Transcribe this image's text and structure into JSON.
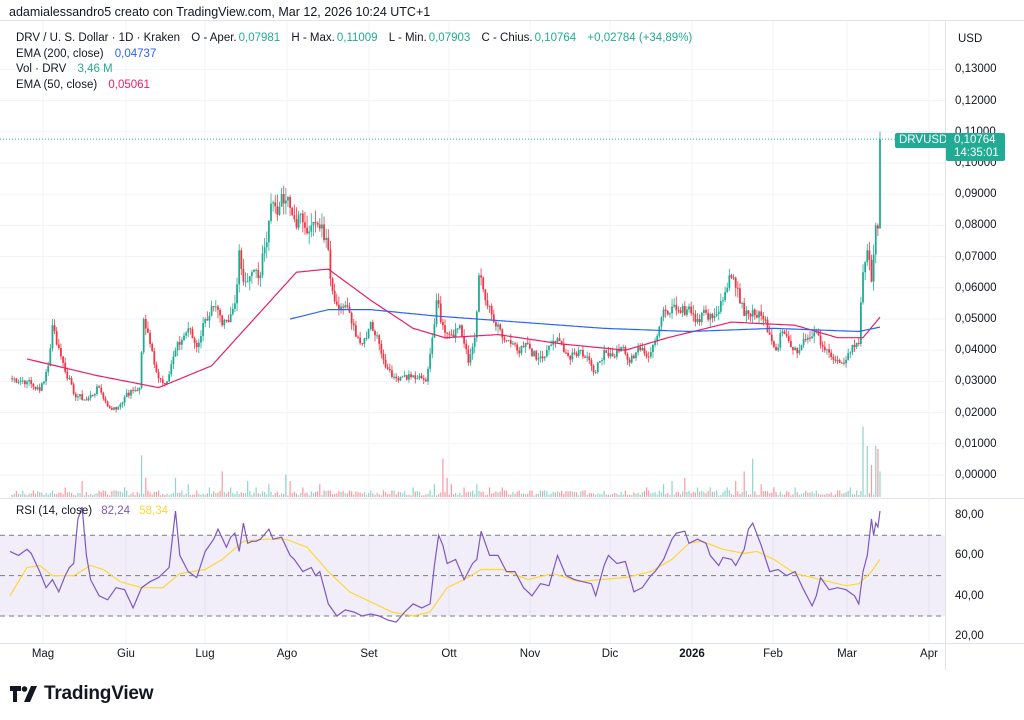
{
  "header": {
    "credit": "adamialessandro5 creato con TradingView.com, Mar 12, 2026 10:24 UTC+1"
  },
  "legend": {
    "symbol": "DRV / U. S. Dollar · 1D · Kraken",
    "open_label": "O - Aper.",
    "open": "0,07981",
    "high_label": "H - Max.",
    "high": "0,11009",
    "low_label": "L - Min.",
    "low": "0,07903",
    "close_label": "C - Chius.",
    "close": "0,10764",
    "change": "+0,02784 (+34,89%)",
    "ema200_label": "EMA (200, close)",
    "ema200": "0,04737",
    "vol_label": "Vol · DRV",
    "vol": "3,46 M",
    "ema50_label": "EMA (50, close)",
    "ema50": "0,05061"
  },
  "rsi_legend": {
    "label": "RSI (14, close)",
    "rsi": "82,24",
    "rsi_ma": "58,34"
  },
  "price_axis": {
    "unit": "USD",
    "ticks": [
      "0,13000",
      "0,12000",
      "0,11000",
      "0,10000",
      "0,09000",
      "0,08000",
      "0,07000",
      "0,06000",
      "0,05000",
      "0,04000",
      "0,03000",
      "0,02000",
      "0,01000",
      "0,00000"
    ]
  },
  "rsi_axis": {
    "ticks": [
      "80,00",
      "60,00",
      "40,00",
      "20,00"
    ]
  },
  "time_axis": {
    "labels": [
      "Mag",
      "Giu",
      "Lug",
      "Ago",
      "Set",
      "Ott",
      "Nov",
      "Dic",
      "2026",
      "Feb",
      "Mar",
      "Apr"
    ]
  },
  "last_price": {
    "symbol": "DRVUSD",
    "price": "0,10764",
    "countdown": "14:35:01"
  },
  "brand": {
    "name": "TradingView"
  },
  "colors": {
    "up": "#22ab94",
    "down": "#f23645",
    "ema200": "#2962ff",
    "ema50": "#e91e63",
    "rsi": "#7e57c2",
    "rsi_ma": "#fdd835",
    "band": "#7e57c2"
  },
  "chart_data": {
    "type": "candlestick",
    "title": "DRV / U. S. Dollar · 1D · Kraken",
    "xlabel": "",
    "ylabel": "USD",
    "ylim": [
      0.0,
      0.135
    ],
    "x_months": [
      "Mag",
      "Giu",
      "Lug",
      "Ago",
      "Set",
      "Ott",
      "Nov",
      "Dic",
      "2026",
      "Feb",
      "Mar",
      "Apr"
    ],
    "close_path_anchors": [
      [
        0,
        0.031
      ],
      [
        8,
        0.03
      ],
      [
        14,
        0.027
      ],
      [
        18,
        0.035
      ],
      [
        20,
        0.048
      ],
      [
        24,
        0.038
      ],
      [
        30,
        0.026
      ],
      [
        36,
        0.024
      ],
      [
        42,
        0.028
      ],
      [
        46,
        0.022
      ],
      [
        50,
        0.021
      ],
      [
        54,
        0.025
      ],
      [
        58,
        0.027
      ],
      [
        61,
        0.028
      ],
      [
        63,
        0.05
      ],
      [
        66,
        0.042
      ],
      [
        70,
        0.031
      ],
      [
        74,
        0.03
      ],
      [
        78,
        0.04
      ],
      [
        84,
        0.047
      ],
      [
        88,
        0.041
      ],
      [
        92,
        0.05
      ],
      [
        96,
        0.054
      ],
      [
        100,
        0.048
      ],
      [
        103,
        0.049
      ],
      [
        106,
        0.055
      ],
      [
        108,
        0.072
      ],
      [
        110,
        0.062
      ],
      [
        114,
        0.065
      ],
      [
        118,
        0.064
      ],
      [
        120,
        0.073
      ],
      [
        123,
        0.087
      ],
      [
        127,
        0.086
      ],
      [
        130,
        0.088
      ],
      [
        134,
        0.082
      ],
      [
        138,
        0.081
      ],
      [
        142,
        0.08
      ],
      [
        146,
        0.079
      ],
      [
        149,
        0.076
      ],
      [
        152,
        0.059
      ],
      [
        156,
        0.054
      ],
      [
        160,
        0.052
      ],
      [
        164,
        0.044
      ],
      [
        166,
        0.042
      ],
      [
        170,
        0.049
      ],
      [
        174,
        0.042
      ],
      [
        178,
        0.034
      ],
      [
        182,
        0.031
      ],
      [
        186,
        0.032
      ],
      [
        192,
        0.031
      ],
      [
        196,
        0.03
      ],
      [
        199,
        0.044
      ],
      [
        201,
        0.056
      ],
      [
        204,
        0.048
      ],
      [
        208,
        0.045
      ],
      [
        212,
        0.048
      ],
      [
        216,
        0.036
      ],
      [
        219,
        0.044
      ],
      [
        221,
        0.064
      ],
      [
        224,
        0.056
      ],
      [
        228,
        0.049
      ],
      [
        232,
        0.044
      ],
      [
        236,
        0.042
      ],
      [
        240,
        0.039
      ],
      [
        244,
        0.042
      ],
      [
        248,
        0.037
      ],
      [
        252,
        0.038
      ],
      [
        256,
        0.043
      ],
      [
        260,
        0.042
      ],
      [
        264,
        0.037
      ],
      [
        268,
        0.04
      ],
      [
        272,
        0.038
      ],
      [
        276,
        0.033
      ],
      [
        280,
        0.04
      ],
      [
        284,
        0.038
      ],
      [
        288,
        0.041
      ],
      [
        292,
        0.036
      ],
      [
        296,
        0.041
      ],
      [
        300,
        0.038
      ],
      [
        304,
        0.043
      ],
      [
        308,
        0.053
      ],
      [
        312,
        0.054
      ],
      [
        316,
        0.052
      ],
      [
        320,
        0.054
      ],
      [
        324,
        0.05
      ],
      [
        328,
        0.052
      ],
      [
        332,
        0.051
      ],
      [
        336,
        0.056
      ],
      [
        339,
        0.064
      ],
      [
        342,
        0.06
      ],
      [
        346,
        0.051
      ],
      [
        350,
        0.053
      ],
      [
        354,
        0.051
      ],
      [
        358,
        0.045
      ],
      [
        361,
        0.04
      ],
      [
        364,
        0.046
      ],
      [
        368,
        0.041
      ],
      [
        372,
        0.04
      ],
      [
        376,
        0.044
      ],
      [
        380,
        0.046
      ],
      [
        384,
        0.04
      ],
      [
        388,
        0.037
      ],
      [
        392,
        0.036
      ],
      [
        395,
        0.039
      ],
      [
        398,
        0.041
      ],
      [
        400,
        0.042
      ],
      [
        402,
        0.065
      ],
      [
        404,
        0.072
      ],
      [
        406,
        0.062
      ],
      [
        408,
        0.08
      ],
      [
        409,
        0.079
      ],
      [
        410,
        0.1076
      ]
    ],
    "ema50_points": [
      [
        8,
        0.0372
      ],
      [
        40,
        0.032
      ],
      [
        70,
        0.028
      ],
      [
        95,
        0.035
      ],
      [
        115,
        0.05
      ],
      [
        135,
        0.065
      ],
      [
        150,
        0.066
      ],
      [
        170,
        0.056
      ],
      [
        190,
        0.047
      ],
      [
        205,
        0.044
      ],
      [
        230,
        0.045
      ],
      [
        260,
        0.042
      ],
      [
        290,
        0.04
      ],
      [
        310,
        0.044
      ],
      [
        340,
        0.049
      ],
      [
        370,
        0.048
      ],
      [
        390,
        0.044
      ],
      [
        402,
        0.044
      ],
      [
        410,
        0.0506
      ]
    ],
    "ema200_points": [
      [
        132,
        0.05
      ],
      [
        150,
        0.053
      ],
      [
        170,
        0.053
      ],
      [
        200,
        0.051
      ],
      [
        240,
        0.049
      ],
      [
        280,
        0.047
      ],
      [
        320,
        0.046
      ],
      [
        360,
        0.047
      ],
      [
        400,
        0.046
      ],
      [
        410,
        0.0474
      ]
    ],
    "rsi_points": [
      [
        0,
        62
      ],
      [
        4,
        60
      ],
      [
        8,
        63
      ],
      [
        10,
        61
      ],
      [
        14,
        52
      ],
      [
        17,
        44
      ],
      [
        20,
        48
      ],
      [
        23,
        42
      ],
      [
        26,
        50
      ],
      [
        28,
        54
      ],
      [
        30,
        56
      ],
      [
        32,
        78
      ],
      [
        34,
        84
      ],
      [
        36,
        60
      ],
      [
        38,
        48
      ],
      [
        42,
        40
      ],
      [
        46,
        38
      ],
      [
        50,
        44
      ],
      [
        54,
        43
      ],
      [
        58,
        34
      ],
      [
        62,
        44
      ],
      [
        66,
        47
      ],
      [
        70,
        49
      ],
      [
        75,
        54
      ],
      [
        78,
        82
      ],
      [
        80,
        60
      ],
      [
        84,
        52
      ],
      [
        88,
        49
      ],
      [
        92,
        62
      ],
      [
        96,
        68
      ],
      [
        98,
        73
      ],
      [
        102,
        64
      ],
      [
        104,
        69
      ],
      [
        106,
        71
      ],
      [
        108,
        62
      ],
      [
        110,
        76
      ],
      [
        112,
        66
      ],
      [
        114,
        67
      ],
      [
        116,
        67
      ],
      [
        118,
        68
      ],
      [
        122,
        73
      ],
      [
        124,
        68
      ],
      [
        128,
        69
      ],
      [
        132,
        60
      ],
      [
        134,
        58
      ],
      [
        138,
        52
      ],
      [
        142,
        54
      ],
      [
        144,
        50
      ],
      [
        146,
        52
      ],
      [
        150,
        36
      ],
      [
        154,
        30
      ],
      [
        158,
        33
      ],
      [
        162,
        32
      ],
      [
        166,
        30
      ],
      [
        170,
        31
      ],
      [
        174,
        30
      ],
      [
        178,
        28
      ],
      [
        182,
        27
      ],
      [
        186,
        32
      ],
      [
        190,
        36
      ],
      [
        194,
        34
      ],
      [
        198,
        36
      ],
      [
        200,
        55
      ],
      [
        202,
        70
      ],
      [
        204,
        65
      ],
      [
        206,
        56
      ],
      [
        210,
        58
      ],
      [
        214,
        48
      ],
      [
        218,
        56
      ],
      [
        220,
        58
      ],
      [
        222,
        72
      ],
      [
        226,
        60
      ],
      [
        230,
        60
      ],
      [
        234,
        52
      ],
      [
        238,
        52
      ],
      [
        242,
        44
      ],
      [
        246,
        40
      ],
      [
        250,
        46
      ],
      [
        254,
        45
      ],
      [
        258,
        60
      ],
      [
        262,
        50
      ],
      [
        266,
        48
      ],
      [
        270,
        47
      ],
      [
        274,
        46
      ],
      [
        276,
        40
      ],
      [
        280,
        55
      ],
      [
        282,
        60
      ],
      [
        286,
        56
      ],
      [
        290,
        57
      ],
      [
        294,
        42
      ],
      [
        298,
        44
      ],
      [
        302,
        50
      ],
      [
        304,
        52
      ],
      [
        308,
        58
      ],
      [
        312,
        68
      ],
      [
        314,
        71
      ],
      [
        318,
        72
      ],
      [
        320,
        66
      ],
      [
        324,
        68
      ],
      [
        328,
        66
      ],
      [
        330,
        60
      ],
      [
        334,
        55
      ],
      [
        336,
        59
      ],
      [
        340,
        58
      ],
      [
        342,
        55
      ],
      [
        346,
        63
      ],
      [
        348,
        73
      ],
      [
        350,
        76
      ],
      [
        354,
        65
      ],
      [
        358,
        52
      ],
      [
        362,
        53
      ],
      [
        366,
        50
      ],
      [
        370,
        52
      ],
      [
        374,
        43
      ],
      [
        378,
        35
      ],
      [
        380,
        40
      ],
      [
        382,
        49
      ],
      [
        386,
        43
      ],
      [
        390,
        44
      ],
      [
        394,
        43
      ],
      [
        398,
        40
      ],
      [
        400,
        36
      ],
      [
        402,
        52
      ],
      [
        404,
        60
      ],
      [
        406,
        78
      ],
      [
        407,
        70
      ],
      [
        408,
        76
      ],
      [
        409,
        74
      ],
      [
        410,
        82
      ]
    ],
    "rsi_ma_points": [
      [
        0,
        40
      ],
      [
        8,
        54
      ],
      [
        14,
        55
      ],
      [
        20,
        50
      ],
      [
        30,
        50
      ],
      [
        38,
        55
      ],
      [
        44,
        53
      ],
      [
        52,
        47
      ],
      [
        62,
        44
      ],
      [
        72,
        44
      ],
      [
        80,
        51
      ],
      [
        92,
        53
      ],
      [
        100,
        58
      ],
      [
        110,
        67
      ],
      [
        120,
        68
      ],
      [
        130,
        68
      ],
      [
        140,
        64
      ],
      [
        150,
        52
      ],
      [
        160,
        42
      ],
      [
        170,
        37
      ],
      [
        180,
        32
      ],
      [
        190,
        30
      ],
      [
        198,
        32
      ],
      [
        206,
        44
      ],
      [
        214,
        48
      ],
      [
        222,
        53
      ],
      [
        232,
        53
      ],
      [
        244,
        48
      ],
      [
        256,
        51
      ],
      [
        268,
        47
      ],
      [
        278,
        48
      ],
      [
        290,
        49
      ],
      [
        302,
        52
      ],
      [
        312,
        58
      ],
      [
        320,
        66
      ],
      [
        326,
        67
      ],
      [
        336,
        63
      ],
      [
        346,
        61
      ],
      [
        352,
        62
      ],
      [
        360,
        58
      ],
      [
        370,
        51
      ],
      [
        382,
        48
      ],
      [
        394,
        45
      ],
      [
        400,
        46
      ],
      [
        406,
        52
      ],
      [
        410,
        58
      ]
    ],
    "volume_spikes": [
      [
        2,
        1
      ],
      [
        6,
        2
      ],
      [
        12,
        1
      ],
      [
        20,
        2
      ],
      [
        26,
        3
      ],
      [
        34,
        5
      ],
      [
        38,
        1
      ],
      [
        42,
        2
      ],
      [
        50,
        2
      ],
      [
        54,
        3
      ],
      [
        62,
        13
      ],
      [
        64,
        6
      ],
      [
        70,
        2
      ],
      [
        78,
        6
      ],
      [
        84,
        4
      ],
      [
        88,
        2
      ],
      [
        94,
        3
      ],
      [
        100,
        8
      ],
      [
        104,
        3
      ],
      [
        112,
        5
      ],
      [
        116,
        3
      ],
      [
        122,
        4
      ],
      [
        130,
        7
      ],
      [
        132,
        5
      ],
      [
        138,
        3
      ],
      [
        146,
        4
      ],
      [
        150,
        2
      ],
      [
        160,
        2
      ],
      [
        170,
        2
      ],
      [
        180,
        2
      ],
      [
        190,
        3
      ],
      [
        200,
        4
      ],
      [
        204,
        12
      ],
      [
        206,
        6
      ],
      [
        208,
        4
      ],
      [
        214,
        3
      ],
      [
        220,
        4
      ],
      [
        226,
        3
      ],
      [
        232,
        3
      ],
      [
        240,
        2
      ],
      [
        250,
        2
      ],
      [
        260,
        2
      ],
      [
        270,
        2
      ],
      [
        280,
        2
      ],
      [
        290,
        2
      ],
      [
        300,
        3
      ],
      [
        308,
        4
      ],
      [
        312,
        5
      ],
      [
        318,
        6
      ],
      [
        324,
        3
      ],
      [
        330,
        3
      ],
      [
        338,
        3
      ],
      [
        342,
        5
      ],
      [
        346,
        8
      ],
      [
        350,
        12
      ],
      [
        354,
        4
      ],
      [
        360,
        3
      ],
      [
        370,
        3
      ],
      [
        380,
        2
      ],
      [
        390,
        2
      ],
      [
        396,
        3
      ],
      [
        402,
        22
      ],
      [
        404,
        16
      ],
      [
        406,
        10
      ],
      [
        408,
        16
      ],
      [
        409,
        15
      ],
      [
        410,
        8
      ]
    ]
  }
}
